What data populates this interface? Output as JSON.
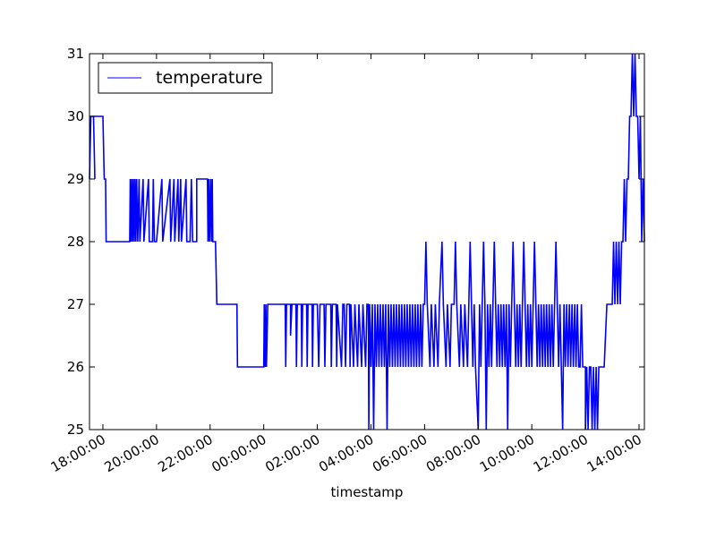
{
  "chart_data": {
    "type": "line",
    "title": "",
    "xlabel": "timestamp",
    "ylabel": "",
    "ylim": [
      25,
      31
    ],
    "y_ticks": [
      25,
      26,
      27,
      28,
      29,
      30,
      31
    ],
    "y_tick_labels": [
      "25",
      "26",
      "27",
      "28",
      "29",
      "30",
      "31"
    ],
    "x_ticks": [
      {
        "label": "18:00:00",
        "hour": 18
      },
      {
        "label": "20:00:00",
        "hour": 20
      },
      {
        "label": "22:00:00",
        "hour": 22
      },
      {
        "label": "00:00:00",
        "hour": 24
      },
      {
        "label": "02:00:00",
        "hour": 26
      },
      {
        "label": "04:00:00",
        "hour": 28
      },
      {
        "label": "06:00:00",
        "hour": 30
      },
      {
        "label": "08:00:00",
        "hour": 32
      },
      {
        "label": "10:00:00",
        "hour": 34
      },
      {
        "label": "12:00:00",
        "hour": 36
      },
      {
        "label": "14:00:00",
        "hour": 38
      }
    ],
    "xlim_hours": [
      17.5,
      38.2
    ],
    "grid": false,
    "legend": {
      "location": "upper-left",
      "entries": [
        "temperature"
      ]
    },
    "series": [
      {
        "name": "temperature",
        "color": "#0000ff",
        "steps": [
          [
            17.5,
            29
          ],
          [
            17.55,
            30
          ],
          [
            17.65,
            30
          ],
          [
            17.7,
            29
          ],
          [
            17.65,
            30
          ],
          [
            18.0,
            30
          ],
          [
            18.05,
            29
          ],
          [
            18.1,
            29
          ],
          [
            18.12,
            28
          ],
          [
            19.0,
            28
          ],
          [
            19.02,
            29
          ],
          [
            19.05,
            28
          ],
          [
            19.08,
            29
          ],
          [
            19.11,
            28
          ],
          [
            19.14,
            29
          ],
          [
            19.17,
            28
          ],
          [
            19.2,
            29
          ],
          [
            19.23,
            28
          ],
          [
            19.26,
            29
          ],
          [
            19.3,
            28
          ],
          [
            19.35,
            29
          ],
          [
            19.38,
            28
          ],
          [
            19.5,
            29
          ],
          [
            19.53,
            28
          ],
          [
            19.7,
            29
          ],
          [
            19.73,
            28
          ],
          [
            19.85,
            28
          ],
          [
            19.88,
            29
          ],
          [
            19.92,
            28
          ],
          [
            20.0,
            28
          ],
          [
            20.2,
            29
          ],
          [
            20.23,
            28
          ],
          [
            20.5,
            29
          ],
          [
            20.53,
            28
          ],
          [
            20.65,
            29
          ],
          [
            20.68,
            28
          ],
          [
            20.8,
            29
          ],
          [
            20.83,
            28
          ],
          [
            20.9,
            29
          ],
          [
            20.93,
            28
          ],
          [
            21.1,
            29
          ],
          [
            21.13,
            28
          ],
          [
            21.25,
            28
          ],
          [
            21.3,
            29
          ],
          [
            21.35,
            28
          ],
          [
            21.5,
            28
          ],
          [
            21.5,
            29
          ],
          [
            21.9,
            29
          ],
          [
            21.92,
            28
          ],
          [
            21.95,
            29
          ],
          [
            21.98,
            28
          ],
          [
            22.02,
            29
          ],
          [
            22.05,
            28
          ],
          [
            22.08,
            29
          ],
          [
            22.1,
            28
          ],
          [
            22.2,
            28
          ],
          [
            22.25,
            27
          ],
          [
            22.3,
            27
          ],
          [
            23.0,
            27
          ],
          [
            23.02,
            26
          ],
          [
            24.0,
            26
          ],
          [
            24.02,
            27
          ],
          [
            24.05,
            26
          ],
          [
            24.08,
            27
          ],
          [
            24.1,
            26
          ],
          [
            24.15,
            27
          ],
          [
            24.8,
            27
          ],
          [
            24.82,
            26
          ],
          [
            24.85,
            27
          ],
          [
            25.0,
            27
          ],
          [
            25.0,
            26.5
          ],
          [
            25.05,
            27
          ],
          [
            25.2,
            27
          ],
          [
            25.22,
            26
          ],
          [
            25.25,
            27
          ],
          [
            25.4,
            27
          ],
          [
            25.42,
            26
          ],
          [
            25.45,
            27
          ],
          [
            25.6,
            27
          ],
          [
            25.62,
            26
          ],
          [
            25.65,
            27
          ],
          [
            25.8,
            27
          ],
          [
            25.82,
            26
          ],
          [
            25.85,
            27
          ],
          [
            26.0,
            27
          ],
          [
            26.05,
            26
          ],
          [
            26.1,
            27
          ],
          [
            26.25,
            27
          ],
          [
            26.28,
            26
          ],
          [
            26.32,
            27
          ],
          [
            26.5,
            27
          ],
          [
            26.52,
            26
          ],
          [
            26.56,
            27
          ],
          [
            26.7,
            27
          ],
          [
            26.72,
            26
          ],
          [
            26.75,
            27
          ],
          [
            26.9,
            26
          ],
          [
            26.95,
            27
          ],
          [
            27.0,
            27
          ],
          [
            27.05,
            26
          ],
          [
            27.1,
            27
          ],
          [
            27.2,
            27
          ],
          [
            27.22,
            26
          ],
          [
            27.25,
            27
          ],
          [
            27.35,
            26
          ],
          [
            27.4,
            27
          ],
          [
            27.5,
            26
          ],
          [
            27.55,
            27
          ],
          [
            27.65,
            26
          ],
          [
            27.7,
            27
          ],
          [
            27.8,
            26
          ],
          [
            27.85,
            27
          ],
          [
            27.9,
            27
          ],
          [
            27.92,
            25
          ],
          [
            27.95,
            27
          ],
          [
            28.0,
            26
          ],
          [
            28.05,
            27
          ],
          [
            28.1,
            25
          ],
          [
            28.15,
            27
          ],
          [
            28.2,
            26
          ],
          [
            28.25,
            27
          ],
          [
            28.3,
            26
          ],
          [
            28.35,
            27
          ],
          [
            28.4,
            26
          ],
          [
            28.45,
            27
          ],
          [
            28.5,
            26
          ],
          [
            28.55,
            27
          ],
          [
            28.6,
            25
          ],
          [
            28.65,
            27
          ],
          [
            28.7,
            26
          ],
          [
            28.75,
            27
          ],
          [
            28.8,
            26
          ],
          [
            28.85,
            27
          ],
          [
            28.9,
            26
          ],
          [
            28.95,
            27
          ],
          [
            29.0,
            26
          ],
          [
            29.05,
            27
          ],
          [
            29.1,
            26
          ],
          [
            29.15,
            27
          ],
          [
            29.2,
            26
          ],
          [
            29.25,
            27
          ],
          [
            29.3,
            26
          ],
          [
            29.35,
            27
          ],
          [
            29.4,
            26
          ],
          [
            29.45,
            27
          ],
          [
            29.5,
            26
          ],
          [
            29.55,
            27
          ],
          [
            29.6,
            26
          ],
          [
            29.65,
            27
          ],
          [
            29.7,
            26
          ],
          [
            29.75,
            27
          ],
          [
            29.8,
            26
          ],
          [
            29.85,
            27
          ],
          [
            29.9,
            26
          ],
          [
            29.95,
            27
          ],
          [
            30.0,
            27
          ],
          [
            30.05,
            28
          ],
          [
            30.1,
            27
          ],
          [
            30.2,
            26
          ],
          [
            30.25,
            27
          ],
          [
            30.35,
            26
          ],
          [
            30.4,
            27
          ],
          [
            30.5,
            26
          ],
          [
            30.55,
            27
          ],
          [
            30.65,
            28
          ],
          [
            30.7,
            27
          ],
          [
            30.8,
            26
          ],
          [
            30.85,
            27
          ],
          [
            30.95,
            26
          ],
          [
            31.0,
            27
          ],
          [
            31.1,
            27
          ],
          [
            31.15,
            28
          ],
          [
            31.2,
            27
          ],
          [
            31.3,
            26
          ],
          [
            31.35,
            27
          ],
          [
            31.45,
            26
          ],
          [
            31.5,
            27
          ],
          [
            31.6,
            26
          ],
          [
            31.65,
            27
          ],
          [
            31.7,
            28
          ],
          [
            31.75,
            27
          ],
          [
            31.8,
            26
          ],
          [
            31.85,
            27
          ],
          [
            31.9,
            26
          ],
          [
            32.0,
            25
          ],
          [
            32.05,
            27
          ],
          [
            32.1,
            26
          ],
          [
            32.15,
            27
          ],
          [
            32.2,
            28
          ],
          [
            32.25,
            27
          ],
          [
            32.3,
            25
          ],
          [
            32.35,
            27
          ],
          [
            32.4,
            26
          ],
          [
            32.45,
            27
          ],
          [
            32.5,
            26
          ],
          [
            32.55,
            27
          ],
          [
            32.6,
            28
          ],
          [
            32.65,
            27
          ],
          [
            32.7,
            26
          ],
          [
            32.75,
            27
          ],
          [
            32.8,
            26
          ],
          [
            32.85,
            27
          ],
          [
            32.9,
            26
          ],
          [
            32.95,
            27
          ],
          [
            33.0,
            26
          ],
          [
            33.05,
            27
          ],
          [
            33.1,
            25
          ],
          [
            33.15,
            27
          ],
          [
            33.2,
            26
          ],
          [
            33.25,
            27
          ],
          [
            33.3,
            28
          ],
          [
            33.35,
            27
          ],
          [
            33.4,
            26
          ],
          [
            33.45,
            27
          ],
          [
            33.5,
            26
          ],
          [
            33.55,
            27
          ],
          [
            33.6,
            26
          ],
          [
            33.65,
            27
          ],
          [
            33.7,
            28
          ],
          [
            33.75,
            27
          ],
          [
            33.8,
            26
          ],
          [
            33.85,
            27
          ],
          [
            33.9,
            26
          ],
          [
            33.95,
            27
          ],
          [
            34.0,
            26
          ],
          [
            34.05,
            27
          ],
          [
            34.1,
            28
          ],
          [
            34.15,
            27
          ],
          [
            34.2,
            26
          ],
          [
            34.25,
            27
          ],
          [
            34.3,
            26
          ],
          [
            34.35,
            27
          ],
          [
            34.4,
            26
          ],
          [
            34.45,
            27
          ],
          [
            34.5,
            26
          ],
          [
            34.55,
            27
          ],
          [
            34.6,
            26
          ],
          [
            34.65,
            27
          ],
          [
            34.7,
            26
          ],
          [
            34.75,
            27
          ],
          [
            34.8,
            26
          ],
          [
            34.85,
            27
          ],
          [
            34.9,
            28
          ],
          [
            34.95,
            27
          ],
          [
            35.0,
            26
          ],
          [
            35.05,
            27
          ],
          [
            35.1,
            26
          ],
          [
            35.15,
            25
          ],
          [
            35.2,
            27
          ],
          [
            35.25,
            26
          ],
          [
            35.3,
            27
          ],
          [
            35.35,
            26
          ],
          [
            35.4,
            27
          ],
          [
            35.45,
            26
          ],
          [
            35.5,
            27
          ],
          [
            35.55,
            26
          ],
          [
            35.6,
            27
          ],
          [
            35.65,
            26
          ],
          [
            35.7,
            27
          ],
          [
            35.75,
            26
          ],
          [
            35.8,
            26
          ],
          [
            35.85,
            27
          ],
          [
            35.9,
            26
          ],
          [
            35.95,
            26
          ],
          [
            36.0,
            26
          ],
          [
            36.0,
            25
          ],
          [
            36.05,
            26
          ],
          [
            36.1,
            25
          ],
          [
            36.15,
            26
          ],
          [
            36.2,
            26
          ],
          [
            36.25,
            25
          ],
          [
            36.3,
            26
          ],
          [
            36.35,
            25
          ],
          [
            36.4,
            26
          ],
          [
            36.45,
            25
          ],
          [
            36.5,
            26
          ],
          [
            36.6,
            26
          ],
          [
            36.7,
            26
          ],
          [
            36.8,
            27
          ],
          [
            37.0,
            27
          ],
          [
            37.05,
            28
          ],
          [
            37.1,
            27
          ],
          [
            37.15,
            28
          ],
          [
            37.2,
            27
          ],
          [
            37.25,
            28
          ],
          [
            37.3,
            27
          ],
          [
            37.35,
            28
          ],
          [
            37.4,
            28
          ],
          [
            37.45,
            29
          ],
          [
            37.5,
            28
          ],
          [
            37.55,
            29
          ],
          [
            37.6,
            29
          ],
          [
            37.65,
            30
          ],
          [
            37.7,
            30
          ],
          [
            37.75,
            31
          ],
          [
            37.8,
            30
          ],
          [
            37.85,
            31
          ],
          [
            37.9,
            30
          ],
          [
            37.95,
            30
          ],
          [
            38.0,
            29
          ],
          [
            38.05,
            30
          ],
          [
            38.1,
            28
          ],
          [
            38.15,
            29
          ],
          [
            38.2,
            28
          ]
        ]
      }
    ]
  }
}
